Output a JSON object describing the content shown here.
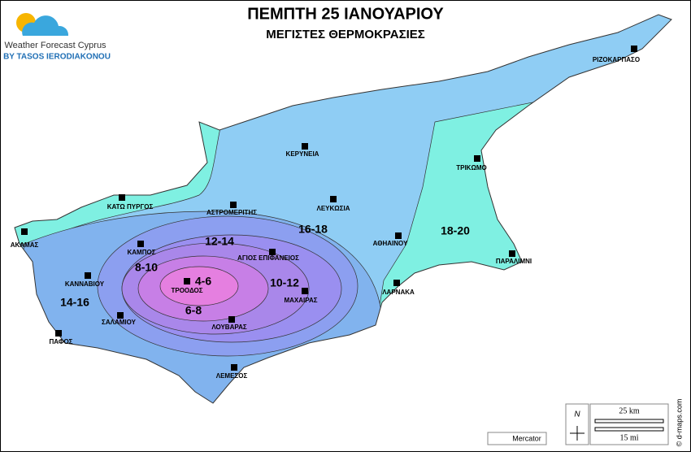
{
  "header": {
    "title": "ΠΕΜΠΤΗ 25 ΙΑΝΟΥΑΡΙΟΥ",
    "subtitle": "ΜΕΓΙΣΤΕΣ ΘΕΡΜΟΚΡΑΣΙΕΣ"
  },
  "logo": {
    "name": "Weather Forecast Cyprus",
    "author": "BY TASOS IERODIAKONOU"
  },
  "cities": [
    {
      "name": "ΡΙΖΟΚΑΡΠΑΣΟ"
    },
    {
      "name": "ΚΕΡΥΝΕΙΑ"
    },
    {
      "name": "ΤΡΙΚΩΜΟ"
    },
    {
      "name": "ΚΑΤΩ ΠΥΡΓΟΣ"
    },
    {
      "name": "ΑΣΤΡΟΜΕΡΙΤΗΣ"
    },
    {
      "name": "ΛΕΥΚΩΣΙΑ"
    },
    {
      "name": "ΑΚΑΜΑΣ"
    },
    {
      "name": "ΑΘΗΑΙΝΟΥ"
    },
    {
      "name": "ΠΑΡΑΛΙΜΝΙ"
    },
    {
      "name": "ΚΑΜΠΟΣ"
    },
    {
      "name": "ΑΓΙΟΣ ΕΠΙΦΑΝΕΙΟΣ"
    },
    {
      "name": "ΚΑΝΝΑΒΙΟΥ"
    },
    {
      "name": "ΤΡΟΟΔΟΣ"
    },
    {
      "name": "ΜΑΧΑΙΡΑΣ"
    },
    {
      "name": "ΛΑΡΝΑΚΑ"
    },
    {
      "name": "ΣΑΛΑΜΙΟΥ"
    },
    {
      "name": "ΛΟΥΒΑΡΑΣ"
    },
    {
      "name": "ΠΑΦΟΣ"
    },
    {
      "name": "ΛΕΜΕΣΟΣ"
    }
  ],
  "zones": [
    {
      "label": "16-18"
    },
    {
      "label": "18-20"
    },
    {
      "label": "12-14"
    },
    {
      "label": "8-10"
    },
    {
      "label": "4-6"
    },
    {
      "label": "10-12"
    },
    {
      "label": "6-8"
    },
    {
      "label": "14-16"
    }
  ],
  "scale": {
    "north": "N",
    "km": "25 km",
    "mi": "15 mi",
    "projection": "Mercator",
    "credit": "© d-maps.com"
  }
}
